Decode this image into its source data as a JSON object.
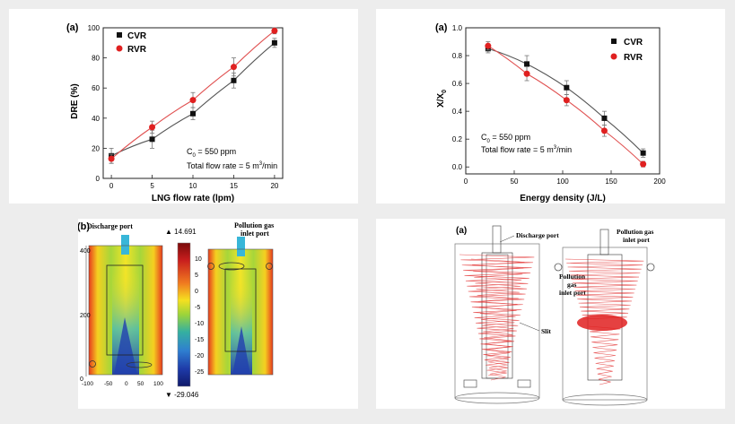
{
  "chart_data": [
    {
      "type": "line",
      "panel_label": "(a)",
      "xlabel": "LNG flow rate (lpm)",
      "ylabel": "DRE (%)",
      "xlim": [
        -1,
        21
      ],
      "ylim": [
        0,
        100
      ],
      "xticks": [
        0,
        5,
        10,
        15,
        20
      ],
      "yticks": [
        0,
        20,
        40,
        60,
        80,
        100
      ],
      "x": [
        0,
        5,
        10,
        15,
        20
      ],
      "series": [
        {
          "name": "CVR",
          "marker": "square",
          "color": "#111111",
          "values": [
            15,
            26,
            43,
            65,
            90
          ],
          "errors": [
            5,
            6,
            4,
            5,
            3
          ]
        },
        {
          "name": "RVR",
          "marker": "circle",
          "color": "#e02020",
          "values": [
            13,
            34,
            52,
            74,
            98
          ],
          "errors": [
            3,
            4,
            5,
            6,
            2
          ]
        }
      ],
      "annotation_line1_prefix": "C",
      "annotation_line1_sub": "0",
      "annotation_line1_suffix": " = 550 ppm",
      "annotation_line2_prefix": "Total flow rate = 5 m",
      "annotation_line2_sup": "3",
      "annotation_line2_suffix": "/min",
      "legend_position": "top-left",
      "grid": false
    },
    {
      "type": "line",
      "panel_label": "(a)",
      "xlabel": "Energy density (J/L)",
      "ylabel_main": "X/X",
      "ylabel_sub": "0",
      "xlim": [
        0,
        200
      ],
      "ylim": [
        -0.05,
        1.0
      ],
      "xticks": [
        0,
        50,
        100,
        150,
        200
      ],
      "yticks": [
        0.0,
        0.2,
        0.4,
        0.6,
        0.8,
        1.0
      ],
      "yticklabels": [
        "0.0",
        "0.2",
        "0.4",
        "0.6",
        "0.8",
        "1.0"
      ],
      "series": [
        {
          "name": "CVR",
          "marker": "square",
          "color": "#111111",
          "x": [
            23,
            63,
            104,
            143,
            183
          ],
          "values": [
            0.85,
            0.74,
            0.57,
            0.35,
            0.1
          ],
          "errors": [
            0.03,
            0.06,
            0.05,
            0.05,
            0.03
          ]
        },
        {
          "name": "RVR",
          "marker": "circle",
          "color": "#e02020",
          "x": [
            23,
            63,
            104,
            143,
            183
          ],
          "values": [
            0.87,
            0.67,
            0.48,
            0.26,
            0.02
          ],
          "errors": [
            0.03,
            0.05,
            0.04,
            0.04,
            0.02
          ]
        }
      ],
      "annotation_line1_prefix": "C",
      "annotation_line1_sub": "0",
      "annotation_line1_suffix": " = 550 ppm",
      "annotation_line2_prefix": "Total flow rate = 5 m",
      "annotation_line2_sup": "3",
      "annotation_line2_suffix": "/min",
      "legend_position": "top-right",
      "grid": false
    }
  ],
  "simulation": {
    "panel_label": "(b)",
    "discharge_label": "Discharge port",
    "inlet_label_line1": "Pollution gas",
    "inlet_label_line2": "inlet port",
    "y_axis_ticks": [
      "400",
      "200",
      "0"
    ],
    "x_axis_ticks": [
      "-100",
      "-50",
      "0",
      "50",
      "100"
    ],
    "colorbar_max_label": "▲ 14.691",
    "colorbar_min_label": "▼ -29.046",
    "colorbar_ticks": [
      "10",
      "5",
      "0",
      "-5",
      "-10",
      "-15",
      "-20",
      "-25"
    ],
    "colorbar_stops": [
      "#7a0a0a",
      "#c81e1e",
      "#f07a20",
      "#f5e020",
      "#9cd43a",
      "#35b0a0",
      "#2f7fd0",
      "#1e3aa8",
      "#101a6a"
    ]
  },
  "schematic": {
    "panel_label": "(a)",
    "discharge_label": "Discharge port",
    "inlet_top_line1": "Pollution gas",
    "inlet_top_line2": "inlet port",
    "inlet_mid_line1": "Pollution",
    "inlet_mid_line2": "gas",
    "inlet_mid_line3": "inlet port",
    "slit_label": "Slit"
  }
}
